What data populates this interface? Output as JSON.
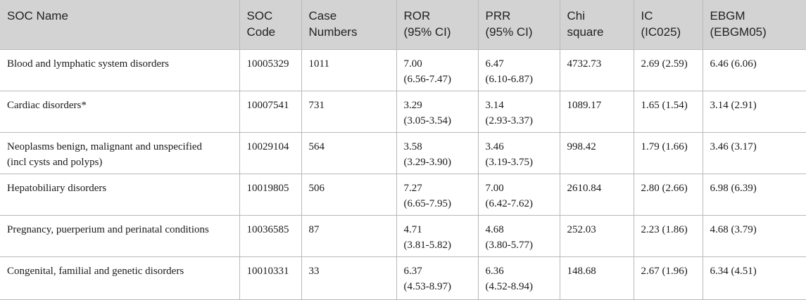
{
  "header": {
    "soc_name": [
      "SOC Name"
    ],
    "soc_code": [
      "SOC",
      "Code"
    ],
    "case_numbers": [
      "Case",
      "Numbers"
    ],
    "ror": [
      "ROR",
      "(95% CI)"
    ],
    "prr": [
      "PRR",
      "(95% CI)"
    ],
    "chi_square": [
      "Chi",
      "square"
    ],
    "ic": [
      "IC",
      "(IC025)"
    ],
    "ebgm": [
      "EBGM",
      "(EBGM05)"
    ]
  },
  "rows": [
    {
      "soc_name": [
        "Blood and lymphatic system disorders"
      ],
      "soc_code": "10005329",
      "case_numbers": "1011",
      "ror": [
        "7.00",
        "(6.56-7.47)"
      ],
      "prr": [
        "6.47",
        "(6.10-6.87)"
      ],
      "chi_square": "4732.73",
      "ic": "2.69 (2.59)",
      "ebgm": "6.46 (6.06)"
    },
    {
      "soc_name": [
        "Cardiac disorders*"
      ],
      "soc_code": "10007541",
      "case_numbers": "731",
      "ror": [
        "3.29",
        "(3.05-3.54)"
      ],
      "prr": [
        "3.14",
        "(2.93-3.37)"
      ],
      "chi_square": "1089.17",
      "ic": "1.65 (1.54)",
      "ebgm": "3.14 (2.91)"
    },
    {
      "soc_name": [
        "Neoplasms benign, malignant and unspecified",
        "(incl cysts and polyps)"
      ],
      "soc_code": "10029104",
      "case_numbers": "564",
      "ror": [
        "3.58",
        "(3.29-3.90)"
      ],
      "prr": [
        "3.46",
        "(3.19-3.75)"
      ],
      "chi_square": "998.42",
      "ic": "1.79 (1.66)",
      "ebgm": "3.46 (3.17)"
    },
    {
      "soc_name": [
        "Hepatobiliary disorders"
      ],
      "soc_code": "10019805",
      "case_numbers": "506",
      "ror": [
        "7.27",
        "(6.65-7.95)"
      ],
      "prr": [
        "7.00",
        "(6.42-7.62)"
      ],
      "chi_square": "2610.84",
      "ic": "2.80 (2.66)",
      "ebgm": "6.98 (6.39)"
    },
    {
      "soc_name": [
        "Pregnancy, puerperium and perinatal conditions"
      ],
      "soc_code": "10036585",
      "case_numbers": "87",
      "ror": [
        "4.71",
        "(3.81-5.82)"
      ],
      "prr": [
        "4.68",
        "(3.80-5.77)"
      ],
      "chi_square": "252.03",
      "ic": "2.23 (1.86)",
      "ebgm": "4.68 (3.79)"
    },
    {
      "soc_name": [
        "Congenital, familial and genetic disorders"
      ],
      "soc_code": "10010331",
      "case_numbers": "33",
      "ror": [
        "6.37",
        "(4.53-8.97)"
      ],
      "prr": [
        "6.36",
        "(4.52-8.94)"
      ],
      "chi_square": "148.68",
      "ic": "2.67 (1.96)",
      "ebgm": "6.34 (4.51)"
    }
  ],
  "colors": {
    "header_background": "#d3d3d3",
    "border": "#b9b9b9",
    "text": "#1a1a1a"
  }
}
